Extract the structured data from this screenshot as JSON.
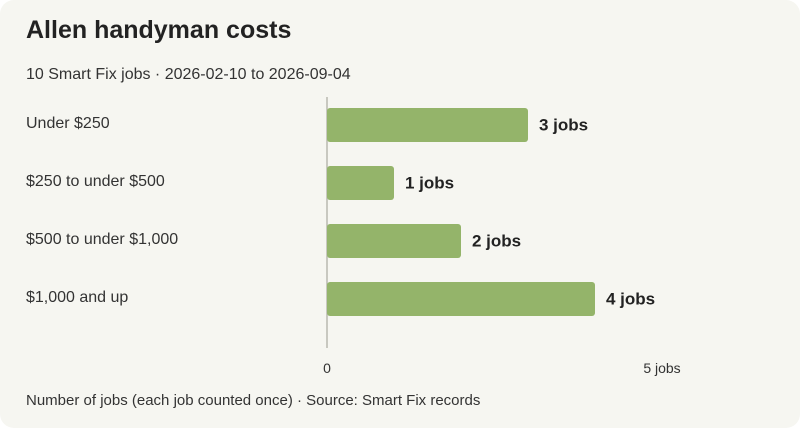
{
  "header": {
    "title": "Allen handyman costs",
    "subtitle": "10 Smart Fix jobs · 2026-02-10 to 2026-09-04"
  },
  "footer": {
    "note": "Number of jobs (each job counted once) · Source: Smart Fix records"
  },
  "colors": {
    "bar": "#94b46a",
    "axis": "#b8b8b0"
  },
  "chart_data": {
    "type": "bar",
    "orientation": "horizontal",
    "categories": [
      "Under $250",
      "$250 to under $500",
      "$500 to under $1,000",
      "$1,000 and up"
    ],
    "values": [
      3,
      1,
      2,
      4
    ],
    "value_labels": [
      "3 jobs",
      "1 jobs",
      "2 jobs",
      "4 jobs"
    ],
    "xlim": [
      0,
      5
    ],
    "ticks": [
      0,
      5
    ],
    "tick_labels": [
      "0",
      "5 jobs"
    ],
    "grid": false
  }
}
